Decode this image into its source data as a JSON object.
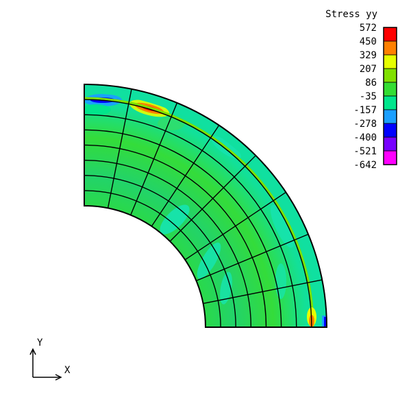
{
  "plot": {
    "variable": "Stress yy"
  },
  "legend": {
    "title": "Stress yy",
    "values": [
      "572",
      "450",
      "329",
      "207",
      "86",
      "-35",
      "-157",
      "-278",
      "-400",
      "-521",
      "-642"
    ],
    "colors": [
      "#ff0000",
      "#ff8000",
      "#e6ff00",
      "#80e000",
      "#33dd33",
      "#00e68c",
      "#1a9fff",
      "#0000ff",
      "#7700ff",
      "#ff00ff"
    ]
  },
  "axes": {
    "y_label": "Y",
    "x_label": "X"
  },
  "mesh": {
    "radial_divisions": 8,
    "angular_divisions": 8,
    "inner_radius_ratio": 0.5
  }
}
